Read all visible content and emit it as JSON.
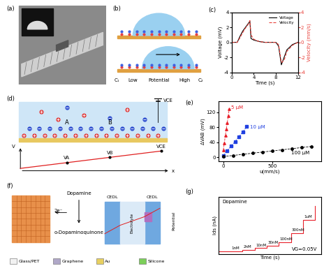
{
  "panels": {
    "a": {
      "label": "(a)"
    },
    "b": {
      "label": "(b)",
      "texts": [
        "C₁",
        "Low",
        "Potential",
        "High",
        "C₂"
      ]
    },
    "d": {
      "label": "(d)",
      "points": [
        "A",
        "B"
      ],
      "source": "VCE",
      "graph": {
        "y_axis": "V",
        "x_axis": "x",
        "marks": [
          "VA",
          "VB",
          "VCE"
        ]
      }
    },
    "f": {
      "label": "(f)",
      "molecules": [
        "Dopamine",
        "o-Dopaminoquinone"
      ],
      "electrons": "2e⁻",
      "capacitors": [
        "CEDL",
        "CEDL"
      ],
      "potential": "Potential",
      "middle": "Electrolyte",
      "layers": [
        {
          "name": "Glass/PET",
          "color": "#f2f2f2"
        },
        {
          "name": "Graphene",
          "color": "#b0a8c8"
        },
        {
          "name": "Au",
          "color": "#e8d060"
        },
        {
          "name": "Silicone",
          "color": "#7ccf5a"
        }
      ]
    }
  },
  "chart_data": [
    {
      "label": "(c)",
      "type": "line",
      "x_label": "Time (s)",
      "y_label": "Voltage (mV)",
      "y2_label": "Velocity (mm/s)",
      "x": [
        0,
        1,
        1.5,
        2,
        2.5,
        3,
        3.3,
        3.5,
        4,
        5,
        6,
        7,
        8,
        8.5,
        9,
        9.5,
        10,
        11,
        12
      ],
      "xlim": [
        0,
        12
      ],
      "xticks": [
        0,
        4,
        8,
        12
      ],
      "ylim": [
        -4,
        4
      ],
      "yticks": [
        -4,
        -2,
        0,
        2,
        4
      ],
      "y2lim": [
        -4,
        4
      ],
      "y2ticks": [
        -4,
        -2,
        0,
        2,
        4
      ],
      "legend": "upper right",
      "series": [
        {
          "name": "Voltage",
          "color": "#000000",
          "line_style": "solid",
          "values": [
            0,
            0,
            0.8,
            1.5,
            2,
            2.5,
            2.8,
            0.5,
            0.3,
            0.1,
            0,
            0,
            0,
            -0.5,
            -3,
            -2,
            -1,
            -0.3,
            0
          ]
        },
        {
          "name": "Velocity",
          "color": "#e8403a",
          "line_style": "dashed",
          "axis": "y2",
          "values": [
            0,
            0,
            0.6,
            1.3,
            1.9,
            2.4,
            2.9,
            1.0,
            0.4,
            0.1,
            0,
            0,
            0,
            -0.3,
            -2.7,
            -2.4,
            -1.2,
            -0.4,
            0
          ]
        }
      ]
    },
    {
      "label": "(e)",
      "type": "scatter",
      "x_label": "u(mm/s)",
      "y_label": "ΔVAB (mV)",
      "xlim": [
        -50,
        1000
      ],
      "xticks": [
        0,
        500
      ],
      "ylim": [
        -10,
        150
      ],
      "yticks": [
        0,
        40,
        80,
        120
      ],
      "series": [
        {
          "name": "5 μM",
          "color": "#e8202a",
          "marker": "triangle",
          "line_style": "dashed",
          "x": [
            0,
            10,
            20,
            30,
            40,
            50,
            60
          ],
          "values": [
            20,
            38,
            58,
            75,
            92,
            110,
            128
          ]
        },
        {
          "name": "10 μM",
          "color": "#2040e0",
          "marker": "square",
          "line_style": "dashed",
          "x": [
            0,
            40,
            80,
            120,
            160,
            200,
            240
          ],
          "values": [
            5,
            18,
            30,
            42,
            55,
            68,
            82
          ]
        },
        {
          "name": "100 μM",
          "color": "#000000",
          "marker": "circle",
          "line_style": "dashed",
          "x": [
            0,
            100,
            200,
            300,
            400,
            500,
            600,
            700,
            800,
            900
          ],
          "values": [
            2,
            5,
            8,
            11,
            14,
            17,
            20,
            23,
            26,
            29
          ]
        }
      ]
    },
    {
      "label": "(g)",
      "type": "line",
      "x_label": "Time (s)",
      "y_label": "Ids (nA)",
      "xlim": [
        0,
        850
      ],
      "ylim": [
        0,
        110
      ],
      "tick_labels": false,
      "x": [
        0,
        100,
        200,
        300,
        400,
        500,
        600,
        700,
        800
      ],
      "step_labels": [
        null,
        "1nM",
        "2nM",
        "10nM",
        "30nM",
        "100nM",
        "300nM",
        "1uM",
        null
      ],
      "note": "VG=0.05V",
      "series": [
        {
          "name": "Dopamine",
          "color": "#e8202a",
          "values": [
            5,
            5,
            8,
            11,
            16,
            22,
            40,
            65,
            92
          ]
        }
      ]
    }
  ]
}
